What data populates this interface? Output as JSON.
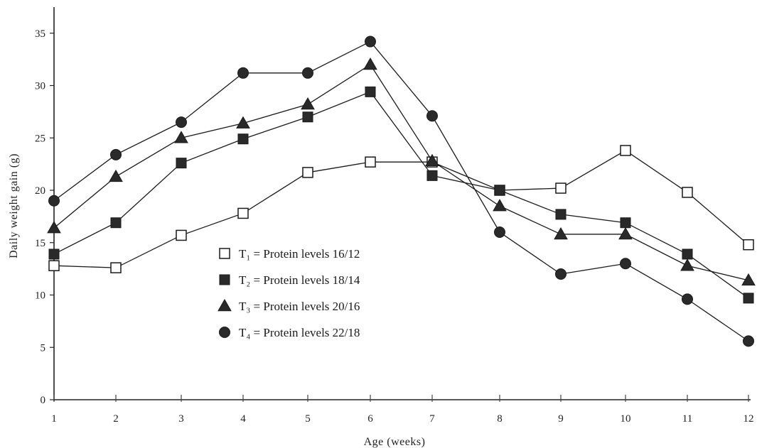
{
  "chart_data": {
    "type": "line",
    "title": "",
    "xlabel": "Age (weeks)",
    "ylabel": "Daily weight gain (g)",
    "x": [
      1,
      2,
      3,
      4,
      5,
      6,
      7,
      8,
      9,
      10,
      11,
      12
    ],
    "xlim": [
      1,
      12
    ],
    "ylim": [
      0,
      37
    ],
    "yticks": [
      0,
      5,
      10,
      15,
      20,
      25,
      30,
      35
    ],
    "grid": false,
    "legend_position": "center-left",
    "series": [
      {
        "name": "T₁ = Protein levels 16/12",
        "marker": "open-square",
        "values": [
          12.8,
          12.6,
          15.7,
          17.8,
          21.7,
          22.7,
          22.7,
          20.0,
          20.2,
          23.8,
          19.8,
          14.8
        ]
      },
      {
        "name": "T₂ = Protein levels 18/14",
        "marker": "filled-square",
        "values": [
          13.9,
          16.9,
          22.6,
          24.9,
          27.0,
          29.4,
          21.4,
          20.0,
          17.7,
          16.9,
          13.9,
          9.7
        ]
      },
      {
        "name": "T₃ = Protein levels 20/16",
        "marker": "filled-triangle",
        "values": [
          16.4,
          21.3,
          25.0,
          26.4,
          28.2,
          32.0,
          22.8,
          18.5,
          15.8,
          15.8,
          12.8,
          11.4
        ]
      },
      {
        "name": "T₄ = Protein levels 22/18",
        "marker": "filled-circle",
        "values": [
          19.0,
          23.4,
          26.5,
          31.2,
          31.2,
          34.2,
          27.1,
          16.0,
          12.0,
          13.0,
          9.6,
          5.6
        ]
      }
    ]
  }
}
